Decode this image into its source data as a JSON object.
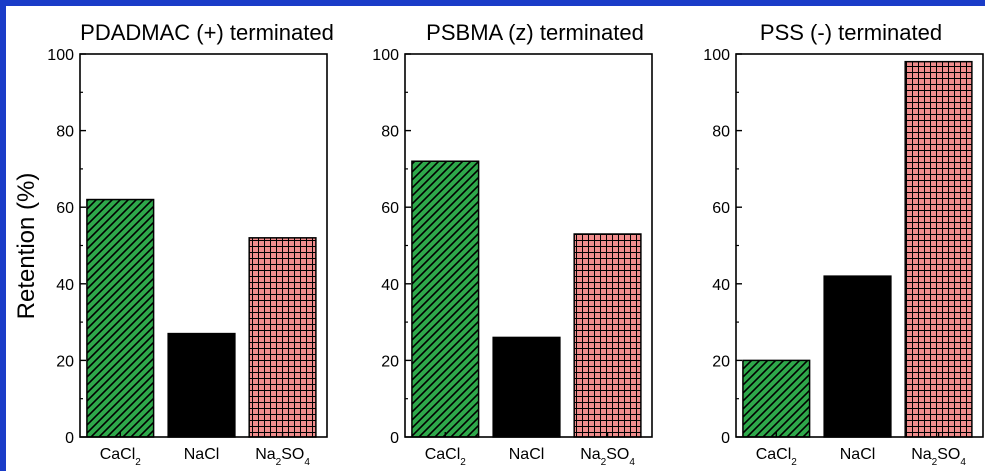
{
  "figure": {
    "ylabel": "Retention (%)",
    "frame_color": "#1a3cc8"
  },
  "chart_data": [
    {
      "type": "bar",
      "title": "PDADMAC (+) terminated",
      "categories": [
        {
          "base": "CaCl",
          "sub": "2",
          "tail": "",
          "sub2": ""
        },
        {
          "base": "NaCl",
          "sub": "",
          "tail": "",
          "sub2": ""
        },
        {
          "base": "Na",
          "sub": "2",
          "tail": "SO",
          "sub2": "4"
        }
      ],
      "values": [
        62,
        27,
        52
      ],
      "ylim": [
        0,
        100
      ],
      "yticks": [
        0,
        20,
        40,
        60,
        80,
        100
      ],
      "xlabel": "",
      "ylabel": "Retention (%)"
    },
    {
      "type": "bar",
      "title": "PSBMA (z) terminated",
      "categories": [
        {
          "base": "CaCl",
          "sub": "2",
          "tail": "",
          "sub2": ""
        },
        {
          "base": "NaCl",
          "sub": "",
          "tail": "",
          "sub2": ""
        },
        {
          "base": "Na",
          "sub": "2",
          "tail": "SO",
          "sub2": "4"
        }
      ],
      "values": [
        72,
        26,
        53
      ],
      "ylim": [
        0,
        100
      ],
      "yticks": [
        0,
        20,
        40,
        60,
        80,
        100
      ],
      "xlabel": "",
      "ylabel": ""
    },
    {
      "type": "bar",
      "title": "PSS (-) terminated",
      "categories": [
        {
          "base": "CaCl",
          "sub": "2",
          "tail": "",
          "sub2": ""
        },
        {
          "base": "NaCl",
          "sub": "",
          "tail": "",
          "sub2": ""
        },
        {
          "base": "Na",
          "sub": "2",
          "tail": "SO",
          "sub2": "4"
        }
      ],
      "values": [
        20,
        42,
        98
      ],
      "ylim": [
        0,
        100
      ],
      "yticks": [
        0,
        20,
        40,
        60,
        80,
        100
      ],
      "xlabel": "",
      "ylabel": ""
    }
  ],
  "bar_styles": [
    {
      "pattern": "diagonal-hatch",
      "fill": "#2ea84a",
      "line": "#000000"
    },
    {
      "pattern": "solid",
      "fill": "#000000",
      "line": "#000000"
    },
    {
      "pattern": "crosshatch",
      "fill": "#f08c8c",
      "line": "#000000"
    }
  ]
}
